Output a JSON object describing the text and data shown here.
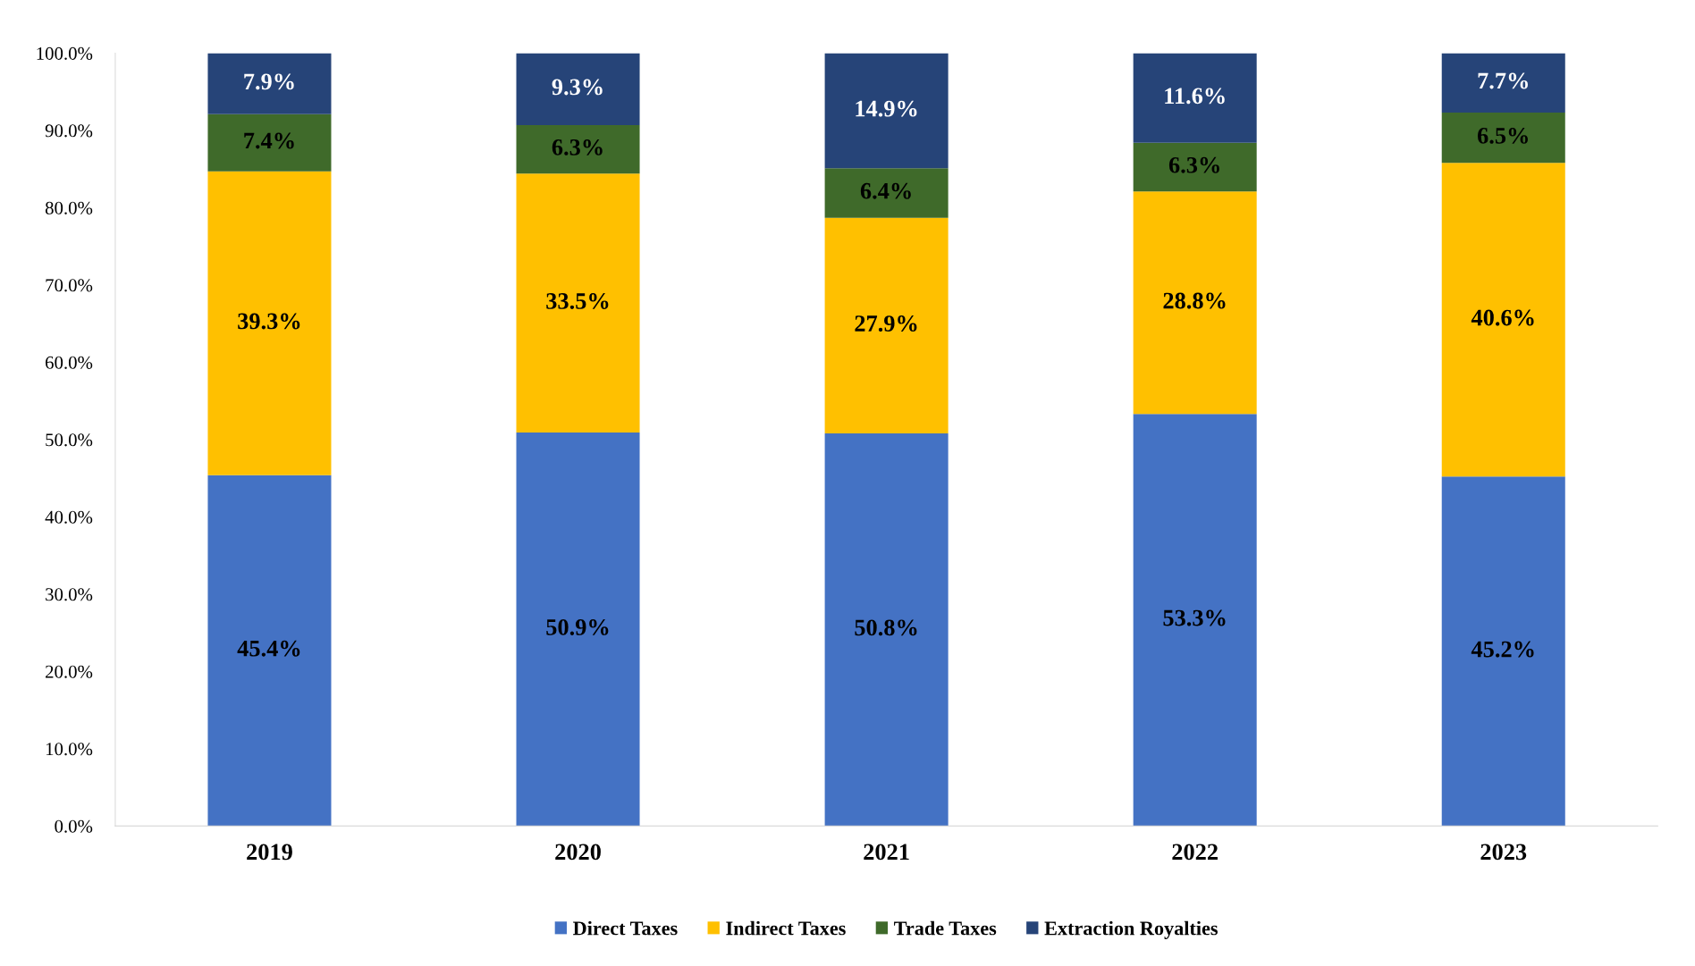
{
  "chart_data": {
    "type": "bar",
    "stacked": true,
    "categories": [
      "2019",
      "2020",
      "2021",
      "2022",
      "2023"
    ],
    "series": [
      {
        "name": "Direct Taxes",
        "color": "#4472c4",
        "values": [
          45.4,
          50.9,
          50.8,
          53.3,
          45.2
        ],
        "value_labels": [
          "45.4%",
          "50.9%",
          "50.8%",
          "53.3%",
          "45.2%"
        ]
      },
      {
        "name": "Indirect Taxes",
        "color": "#ffc000",
        "values": [
          39.3,
          33.5,
          27.9,
          28.8,
          40.6
        ],
        "value_labels": [
          "39.3%",
          "33.5%",
          "27.9%",
          "28.8%",
          "40.6%"
        ]
      },
      {
        "name": "Trade Taxes",
        "color": "#3f6a2a",
        "values": [
          7.4,
          6.3,
          6.4,
          6.3,
          6.5
        ],
        "value_labels": [
          "7.4%",
          "6.3%",
          "6.4%",
          "6.3%",
          "6.5%"
        ]
      },
      {
        "name": "Extraction Royalties",
        "color": "#264478",
        "values": [
          7.9,
          9.3,
          14.9,
          11.6,
          7.7
        ],
        "value_labels": [
          "7.9%",
          "9.3%",
          "14.9%",
          "11.6%",
          "7.7%"
        ]
      }
    ],
    "ylim": [
      0,
      100
    ],
    "yticks": [
      {
        "value": 0,
        "label": "0.0%"
      },
      {
        "value": 10,
        "label": "10.0%"
      },
      {
        "value": 20,
        "label": "20.0%"
      },
      {
        "value": 30,
        "label": "30.0%"
      },
      {
        "value": 40,
        "label": "40.0%"
      },
      {
        "value": 50,
        "label": "50.0%"
      },
      {
        "value": 60,
        "label": "60.0%"
      },
      {
        "value": 70,
        "label": "70.0%"
      },
      {
        "value": 80,
        "label": "80.0%"
      },
      {
        "value": 90,
        "label": "90.0%"
      },
      {
        "value": 100,
        "label": "100.0%"
      }
    ],
    "grid": false,
    "legend": "bottom"
  }
}
